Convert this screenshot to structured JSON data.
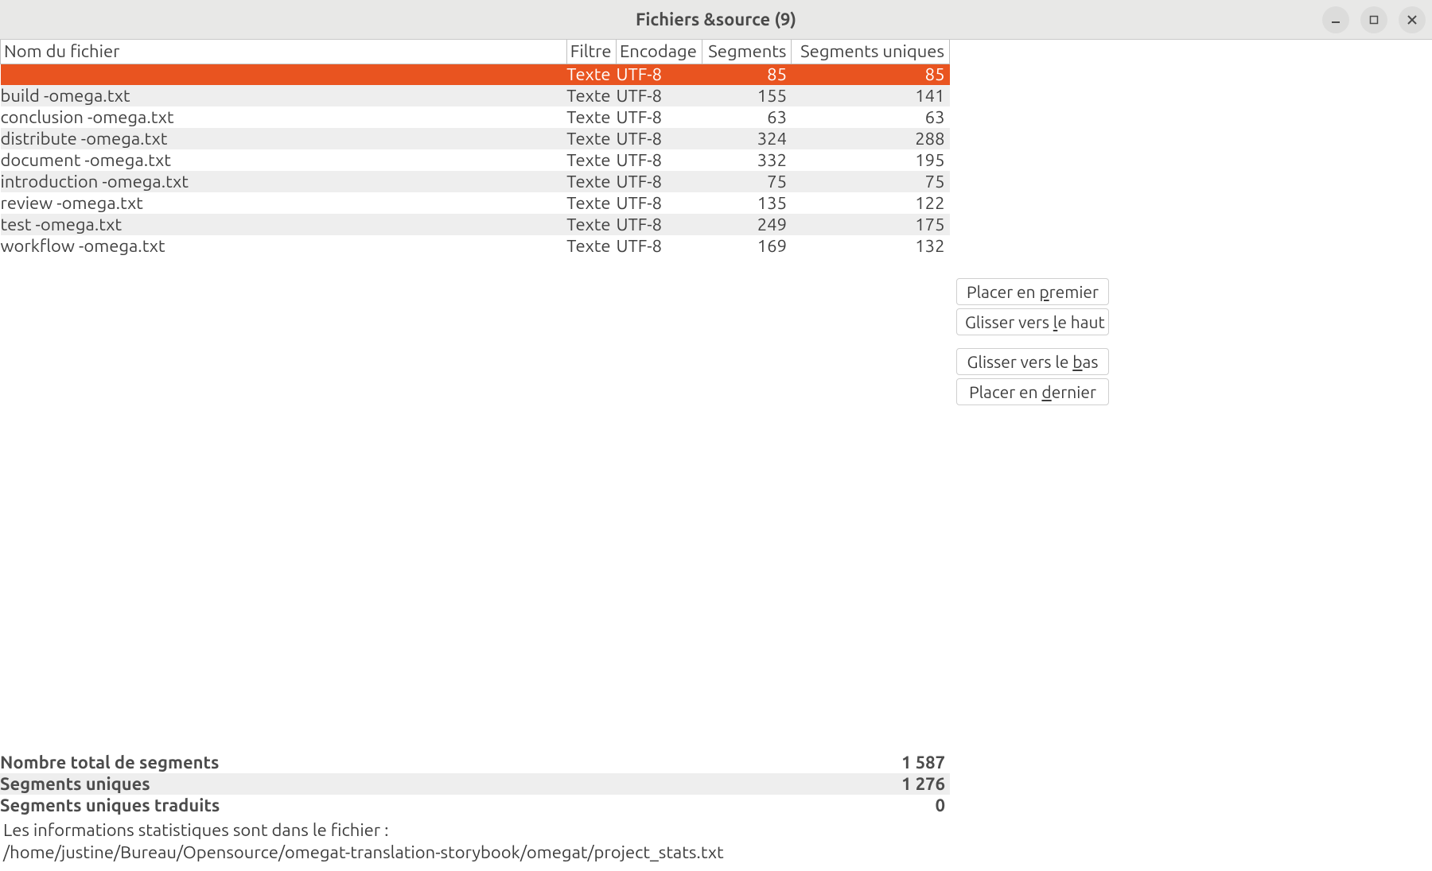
{
  "window": {
    "title": "Fichiers &source (9)"
  },
  "colors": {
    "selection_bg": "#e95420",
    "selection_fg": "#ffffff",
    "zebra_even": "#eeeeee",
    "zebra_odd": "#ffffff",
    "titlebar_bg": "#e8e8e7",
    "border": "#bfbfbf",
    "text": "#414141"
  },
  "columns": {
    "name": "Nom du fichier",
    "filter": "Filtre",
    "encoding": "Encodage",
    "segments": "Segments",
    "unique": "Segments uniques"
  },
  "rows": [
    {
      "name": "",
      "filter": "Texte",
      "encoding": "UTF-8",
      "segments": "85",
      "unique": "85",
      "selected": true
    },
    {
      "name": "build -omega.txt",
      "filter": "Texte",
      "encoding": "UTF-8",
      "segments": "155",
      "unique": "141",
      "selected": false
    },
    {
      "name": "conclusion -omega.txt",
      "filter": "Texte",
      "encoding": "UTF-8",
      "segments": "63",
      "unique": "63",
      "selected": false
    },
    {
      "name": "distribute -omega.txt",
      "filter": "Texte",
      "encoding": "UTF-8",
      "segments": "324",
      "unique": "288",
      "selected": false
    },
    {
      "name": "document -omega.txt",
      "filter": "Texte",
      "encoding": "UTF-8",
      "segments": "332",
      "unique": "195",
      "selected": false
    },
    {
      "name": "introduction -omega.txt",
      "filter": "Texte",
      "encoding": "UTF-8",
      "segments": "75",
      "unique": "75",
      "selected": false
    },
    {
      "name": "review -omega.txt",
      "filter": "Texte",
      "encoding": "UTF-8",
      "segments": "135",
      "unique": "122",
      "selected": false
    },
    {
      "name": "test -omega.txt",
      "filter": "Texte",
      "encoding": "UTF-8",
      "segments": "249",
      "unique": "175",
      "selected": false
    },
    {
      "name": "workflow -omega.txt",
      "filter": "Texte",
      "encoding": "UTF-8",
      "segments": "169",
      "unique": "132",
      "selected": false
    }
  ],
  "buttons": {
    "move_first": {
      "pre": "Placer en ",
      "ul": "p",
      "post": "remier"
    },
    "move_up": {
      "pre": "Glisser vers ",
      "ul": "l",
      "post": "e haut"
    },
    "move_down": {
      "pre": "Glisser vers le ",
      "ul": "b",
      "post": "as"
    },
    "move_last": {
      "pre": "Placer en ",
      "ul": "d",
      "post": "ernier"
    }
  },
  "summary": {
    "rows": [
      {
        "label": "Nombre total de segments",
        "value": "1 587"
      },
      {
        "label": "Segments uniques",
        "value": "1 276"
      },
      {
        "label": "Segments uniques traduits",
        "value": "0"
      }
    ]
  },
  "footer": {
    "line1": "Les informations statistiques sont dans le fichier :",
    "line2": "/home/justine/Bureau/Opensource/omegat-translation-storybook/omegat/project_stats.txt"
  }
}
